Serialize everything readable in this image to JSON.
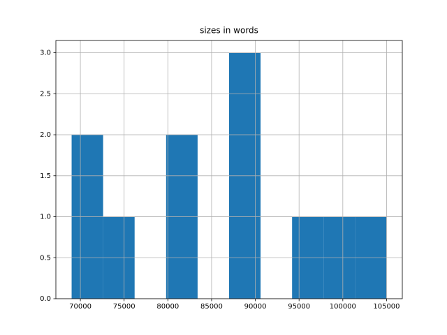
{
  "chart_data": {
    "type": "histogram",
    "title": "sizes in words",
    "bins": [
      69000,
      72600,
      76200,
      79800,
      83400,
      87000,
      90600,
      94200,
      97800,
      101400,
      105000
    ],
    "values": [
      2,
      1,
      0,
      2,
      0,
      3,
      0,
      1,
      1,
      1
    ],
    "color": "#1f77b4",
    "xlim": [
      67200,
      106800
    ],
    "xticks": [
      70000,
      75000,
      80000,
      85000,
      90000,
      95000,
      100000,
      105000
    ],
    "ylim": [
      0,
      3.15
    ],
    "yticks": [
      {
        "value": 0,
        "label": "0.0"
      },
      {
        "value": 0.5,
        "label": "0.5"
      },
      {
        "value": 1,
        "label": "1.0"
      },
      {
        "value": 1.5,
        "label": "1.5"
      },
      {
        "value": 2,
        "label": "2.0"
      },
      {
        "value": 2.5,
        "label": "2.5"
      },
      {
        "value": 3,
        "label": "3.0"
      }
    ],
    "grid": true
  }
}
